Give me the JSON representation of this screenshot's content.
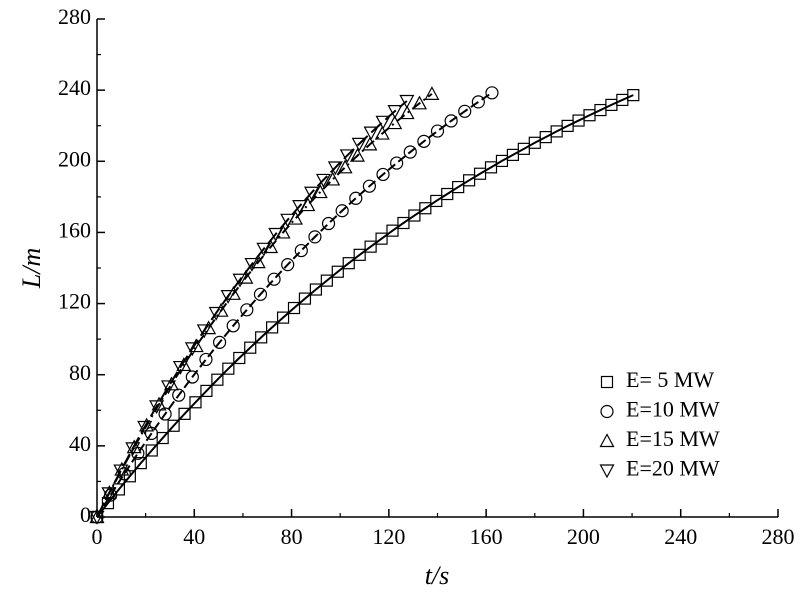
{
  "chart_data": {
    "type": "scatter",
    "xlabel": "t/s",
    "ylabel": "L/m",
    "xlim": [
      0,
      280
    ],
    "xticks": [
      0,
      40,
      80,
      120,
      160,
      200,
      240,
      280
    ],
    "ylim": [
      0,
      280
    ],
    "yticks": [
      0,
      40,
      80,
      120,
      160,
      200,
      240,
      280
    ],
    "legend": "lower right",
    "series": [
      {
        "name": "E= 5 MW",
        "color": "#000000",
        "marker": "square",
        "line": "solid",
        "x": [
          0,
          4.5,
          9,
          13.5,
          18,
          22.5,
          27,
          31.5,
          36,
          40.5,
          45,
          49.5,
          54,
          58.5,
          63,
          67.5,
          72,
          76.5,
          81,
          85.5,
          90,
          94.5,
          99,
          103.5,
          108,
          112.5,
          117,
          121.5,
          126,
          130.5,
          135,
          139.5,
          144,
          148.5,
          153,
          157.5,
          162,
          166.5,
          171,
          175.5,
          180,
          184.5,
          189,
          193.5,
          198,
          202.5,
          207,
          211.5,
          216,
          220.5
        ],
        "values": [
          0,
          7.8,
          15.5,
          22.9,
          30.3,
          37.4,
          44.4,
          51.3,
          58.0,
          64.5,
          70.9,
          77.2,
          83.4,
          89.4,
          95.2,
          101.0,
          106.6,
          112.1,
          117.5,
          122.8,
          127.9,
          132.9,
          137.9,
          142.7,
          147.4,
          152.0,
          156.5,
          161.0,
          165.3,
          169.5,
          173.6,
          177.7,
          181.6,
          185.5,
          189.3,
          193.0,
          196.6,
          200.2,
          203.6,
          207.0,
          210.4,
          213.6,
          216.8,
          219.9,
          222.9,
          225.9,
          228.8,
          231.7,
          234.5,
          237.2
        ]
      },
      {
        "name": "E=10 MW",
        "color": "#000000",
        "marker": "circle",
        "line": "dashed",
        "x": [
          0,
          5.6,
          11.2,
          16.8,
          22.4,
          28,
          33.6,
          39.2,
          44.8,
          50.4,
          56,
          61.6,
          67.2,
          72.8,
          78.4,
          84,
          89.6,
          95.2,
          100.8,
          106.4,
          112,
          117.6,
          123.2,
          128.8,
          134.4,
          140,
          145.6,
          151.2,
          156.8,
          162.4
        ],
        "values": [
          0,
          12.3,
          24.3,
          35.8,
          47.0,
          57.9,
          68.5,
          78.7,
          88.6,
          98.2,
          107.5,
          116.5,
          125.2,
          133.7,
          141.9,
          149.8,
          157.5,
          165.0,
          172.2,
          179.2,
          186.0,
          192.6,
          199.0,
          205.2,
          211.2,
          217.0,
          222.7,
          228.1,
          233.4,
          238.5
        ]
      },
      {
        "name": "E=15 MW",
        "color": "#000000",
        "marker": "triangle-up",
        "line": "dashdot",
        "x": [
          0,
          5.1,
          10.2,
          15.3,
          20.4,
          25.5,
          30.6,
          35.7,
          40.8,
          45.9,
          51,
          56.1,
          61.2,
          66.3,
          71.4,
          76.5,
          81.6,
          86.7,
          91.8,
          96.9,
          102,
          107.1,
          112.2,
          117.3,
          122.4,
          127.5,
          132.6,
          137.7
        ],
        "values": [
          0,
          13.6,
          26.7,
          39.3,
          51.5,
          63.3,
          74.6,
          85.5,
          96.1,
          106.2,
          116.0,
          125.5,
          134.6,
          143.3,
          151.8,
          160.0,
          167.8,
          175.4,
          182.7,
          189.8,
          196.6,
          203.2,
          209.5,
          215.6,
          221.5,
          227.1,
          232.6,
          237.9
        ]
      },
      {
        "name": "E=20 MW",
        "color": "#000000",
        "marker": "triangle-down",
        "line": "longdash",
        "x": [
          0,
          4.9,
          9.8,
          14.7,
          19.6,
          24.5,
          29.4,
          34.3,
          39.2,
          44.1,
          49,
          53.9,
          58.8,
          63.7,
          68.6,
          73.5,
          78.4,
          83.3,
          88.2,
          93.1,
          98,
          102.9,
          107.8,
          112.7,
          117.6,
          122.5,
          127.4
        ],
        "values": [
          0,
          13.3,
          26.1,
          38.6,
          50.6,
          62.2,
          73.4,
          84.3,
          94.8,
          104.9,
          114.7,
          124.2,
          133.4,
          142.2,
          150.8,
          159.1,
          167.1,
          174.8,
          182.3,
          189.5,
          196.5,
          203.3,
          209.8,
          216.1,
          222.2,
          228.2,
          233.9
        ]
      }
    ]
  }
}
